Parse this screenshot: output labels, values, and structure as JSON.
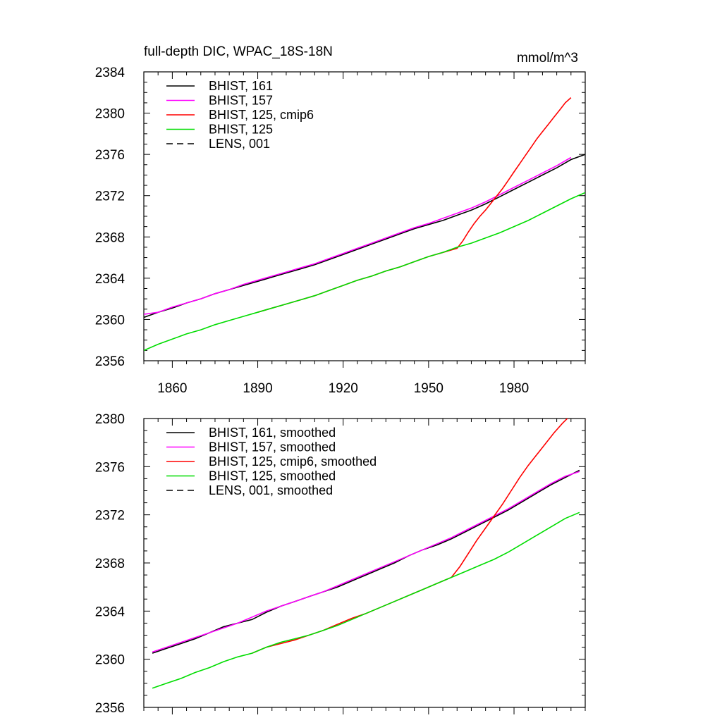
{
  "chart_data": [
    {
      "type": "line",
      "title": "full-depth DIC, WPAC_18S-18N",
      "units": "mmol/m^3",
      "xlim": [
        1850,
        2005
      ],
      "ylim": [
        2356,
        2384
      ],
      "x_ticks": [
        1860,
        1890,
        1920,
        1950,
        1980
      ],
      "y_ticks": [
        2356,
        2360,
        2364,
        2368,
        2372,
        2376,
        2380,
        2384
      ],
      "x_tick_labels_shown": true,
      "grid": false,
      "legend_position": "top-left",
      "series": [
        {
          "name": "BHIST, 161",
          "color": "#000000",
          "dash": "solid",
          "x": [
            1850,
            1855,
            1860,
            1865,
            1870,
            1875,
            1880,
            1885,
            1890,
            1895,
            1900,
            1905,
            1910,
            1915,
            1920,
            1925,
            1930,
            1935,
            1940,
            1945,
            1950,
            1955,
            1960,
            1965,
            1970,
            1975,
            1980,
            1985,
            1990,
            1995,
            2000,
            2005
          ],
          "y": [
            2360.2,
            2360.7,
            2361.1,
            2361.6,
            2362.0,
            2362.5,
            2362.9,
            2363.3,
            2363.7,
            2364.1,
            2364.5,
            2364.9,
            2365.3,
            2365.8,
            2366.3,
            2366.8,
            2367.3,
            2367.8,
            2368.3,
            2368.8,
            2369.2,
            2369.6,
            2370.1,
            2370.6,
            2371.2,
            2371.9,
            2372.6,
            2373.3,
            2374.0,
            2374.7,
            2375.5,
            2376.0
          ]
        },
        {
          "name": "BHIST, 157",
          "color": "#ff00ff",
          "dash": "solid",
          "x": [
            1850,
            1855,
            1860,
            1865,
            1870,
            1875,
            1880,
            1885,
            1890,
            1895,
            1900,
            1905,
            1910,
            1915,
            1920,
            1925,
            1930,
            1935,
            1940,
            1945,
            1950,
            1955,
            1960,
            1965,
            1970,
            1975,
            1980,
            1985,
            1990,
            1995,
            2000
          ],
          "y": [
            2360.5,
            2360.7,
            2361.2,
            2361.6,
            2362.0,
            2362.5,
            2362.9,
            2363.4,
            2363.8,
            2364.2,
            2364.6,
            2365.0,
            2365.4,
            2365.9,
            2366.4,
            2366.9,
            2367.4,
            2367.9,
            2368.4,
            2368.9,
            2369.3,
            2369.8,
            2370.3,
            2370.8,
            2371.4,
            2372.1,
            2372.8,
            2373.5,
            2374.2,
            2374.9,
            2375.7
          ]
        },
        {
          "name": "BHIST, 125, cmip6",
          "color": "#ff0000",
          "dash": "solid",
          "x": [
            1890,
            1895,
            1900,
            1905,
            1910,
            1915,
            1920,
            1925,
            1930,
            1935,
            1940,
            1945,
            1950,
            1955,
            1960,
            1962,
            1964,
            1966,
            1968,
            1970,
            1972,
            1974,
            1976,
            1978,
            1980,
            1982,
            1984,
            1986,
            1988,
            1990,
            1992,
            1994,
            1996,
            1998,
            2000
          ],
          "y": [
            2360.7,
            2361.1,
            2361.5,
            2361.9,
            2362.3,
            2362.8,
            2363.3,
            2363.8,
            2364.2,
            2364.7,
            2365.1,
            2365.6,
            2366.1,
            2366.5,
            2366.9,
            2367.6,
            2368.5,
            2369.3,
            2370.0,
            2370.6,
            2371.3,
            2372.0,
            2372.7,
            2373.5,
            2374.3,
            2375.1,
            2375.9,
            2376.7,
            2377.5,
            2378.2,
            2378.9,
            2379.6,
            2380.3,
            2381.0,
            2381.5
          ]
        },
        {
          "name": "BHIST, 125",
          "color": "#00dd00",
          "dash": "solid",
          "x": [
            1850,
            1855,
            1860,
            1865,
            1870,
            1875,
            1880,
            1885,
            1890,
            1895,
            1900,
            1905,
            1910,
            1915,
            1920,
            1925,
            1930,
            1935,
            1940,
            1945,
            1950,
            1955,
            1960,
            1965,
            1970,
            1975,
            1980,
            1985,
            1990,
            1995,
            2000,
            2005
          ],
          "y": [
            2357.0,
            2357.6,
            2358.1,
            2358.6,
            2359.0,
            2359.5,
            2359.9,
            2360.3,
            2360.7,
            2361.1,
            2361.5,
            2361.9,
            2362.3,
            2362.8,
            2363.3,
            2363.8,
            2364.2,
            2364.7,
            2365.1,
            2365.6,
            2366.1,
            2366.5,
            2367.0,
            2367.4,
            2367.9,
            2368.4,
            2369.0,
            2369.6,
            2370.3,
            2371.0,
            2371.7,
            2372.3
          ]
        }
      ],
      "legend": [
        {
          "label": "BHIST, 161",
          "color": "#000000",
          "dash": "solid"
        },
        {
          "label": "BHIST, 157",
          "color": "#ff00ff",
          "dash": "solid"
        },
        {
          "label": "BHIST, 125, cmip6",
          "color": "#ff0000",
          "dash": "solid"
        },
        {
          "label": "BHIST, 125",
          "color": "#00dd00",
          "dash": "solid"
        },
        {
          "label": "LENS, 001",
          "color": "#000000",
          "dash": "dashed"
        }
      ]
    },
    {
      "type": "line",
      "title": "",
      "units": "",
      "xlim": [
        1850,
        2005
      ],
      "ylim": [
        2356,
        2380
      ],
      "x_ticks": [
        1860,
        1890,
        1920,
        1950,
        1980
      ],
      "y_ticks": [
        2356,
        2360,
        2364,
        2368,
        2372,
        2376,
        2380
      ],
      "x_tick_labels_shown": false,
      "grid": false,
      "legend_position": "top-left",
      "series": [
        {
          "name": "BHIST, 161, smoothed",
          "color": "#000000",
          "dash": "solid",
          "x": [
            1853,
            1858,
            1863,
            1868,
            1873,
            1878,
            1883,
            1888,
            1893,
            1898,
            1903,
            1908,
            1913,
            1918,
            1923,
            1928,
            1933,
            1938,
            1943,
            1948,
            1953,
            1958,
            1963,
            1968,
            1973,
            1978,
            1983,
            1988,
            1993,
            1998,
            2003
          ],
          "y": [
            2360.5,
            2360.9,
            2361.3,
            2361.7,
            2362.2,
            2362.7,
            2363.0,
            2363.3,
            2363.9,
            2364.4,
            2364.8,
            2365.2,
            2365.6,
            2366.0,
            2366.5,
            2367.0,
            2367.5,
            2368.0,
            2368.6,
            2369.1,
            2369.5,
            2370.0,
            2370.6,
            2371.2,
            2371.8,
            2372.4,
            2373.1,
            2373.8,
            2374.5,
            2375.1,
            2375.7
          ]
        },
        {
          "name": "BHIST, 157, smoothed",
          "color": "#ff00ff",
          "dash": "solid",
          "x": [
            1853,
            1858,
            1863,
            1868,
            1873,
            1878,
            1883,
            1888,
            1893,
            1898,
            1903,
            1908,
            1913,
            1918,
            1923,
            1928,
            1933,
            1938,
            1943,
            1948,
            1953,
            1958,
            1963,
            1968,
            1973,
            1978,
            1983,
            1988,
            1993,
            1998,
            2003
          ],
          "y": [
            2360.6,
            2361.0,
            2361.4,
            2361.8,
            2362.2,
            2362.6,
            2363.0,
            2363.5,
            2364.0,
            2364.4,
            2364.8,
            2365.2,
            2365.6,
            2366.1,
            2366.6,
            2367.1,
            2367.6,
            2368.1,
            2368.6,
            2369.1,
            2369.6,
            2370.1,
            2370.7,
            2371.3,
            2371.9,
            2372.5,
            2373.2,
            2373.9,
            2374.6,
            2375.2,
            2375.6
          ]
        },
        {
          "name": "BHIST, 125, cmip6, smoothed",
          "color": "#ff0000",
          "dash": "solid",
          "x": [
            1888,
            1893,
            1898,
            1903,
            1908,
            1913,
            1918,
            1923,
            1928,
            1933,
            1938,
            1943,
            1948,
            1953,
            1958,
            1961,
            1964,
            1967,
            1970,
            1973,
            1976,
            1979,
            1982,
            1985,
            1988,
            1991,
            1994,
            1997,
            2000
          ],
          "y": [
            2360.5,
            2361.0,
            2361.3,
            2361.6,
            2362.0,
            2362.4,
            2362.9,
            2363.4,
            2363.8,
            2364.3,
            2364.8,
            2365.3,
            2365.8,
            2366.3,
            2366.8,
            2367.7,
            2368.8,
            2369.9,
            2370.9,
            2371.9,
            2372.9,
            2374.0,
            2375.1,
            2376.1,
            2377.0,
            2377.9,
            2378.8,
            2379.6,
            2380.3
          ]
        },
        {
          "name": "BHIST, 125, smoothed",
          "color": "#00dd00",
          "dash": "solid",
          "x": [
            1853,
            1858,
            1863,
            1868,
            1873,
            1878,
            1883,
            1888,
            1893,
            1898,
            1903,
            1908,
            1913,
            1918,
            1923,
            1928,
            1933,
            1938,
            1943,
            1948,
            1953,
            1958,
            1963,
            1968,
            1973,
            1978,
            1983,
            1988,
            1993,
            1998,
            2003
          ],
          "y": [
            2357.6,
            2358.0,
            2358.4,
            2358.9,
            2359.3,
            2359.8,
            2360.2,
            2360.5,
            2361.0,
            2361.4,
            2361.7,
            2362.0,
            2362.4,
            2362.8,
            2363.3,
            2363.8,
            2364.3,
            2364.8,
            2365.3,
            2365.8,
            2366.3,
            2366.8,
            2367.3,
            2367.8,
            2368.3,
            2368.9,
            2369.6,
            2370.3,
            2371.0,
            2371.7,
            2372.2
          ]
        }
      ],
      "legend": [
        {
          "label": "BHIST, 161, smoothed",
          "color": "#000000",
          "dash": "solid"
        },
        {
          "label": "BHIST, 157, smoothed",
          "color": "#ff00ff",
          "dash": "solid"
        },
        {
          "label": "BHIST, 125, cmip6, smoothed",
          "color": "#ff0000",
          "dash": "solid"
        },
        {
          "label": "BHIST, 125, smoothed",
          "color": "#00dd00",
          "dash": "solid"
        },
        {
          "label": "LENS, 001, smoothed",
          "color": "#000000",
          "dash": "dashed"
        }
      ]
    }
  ]
}
